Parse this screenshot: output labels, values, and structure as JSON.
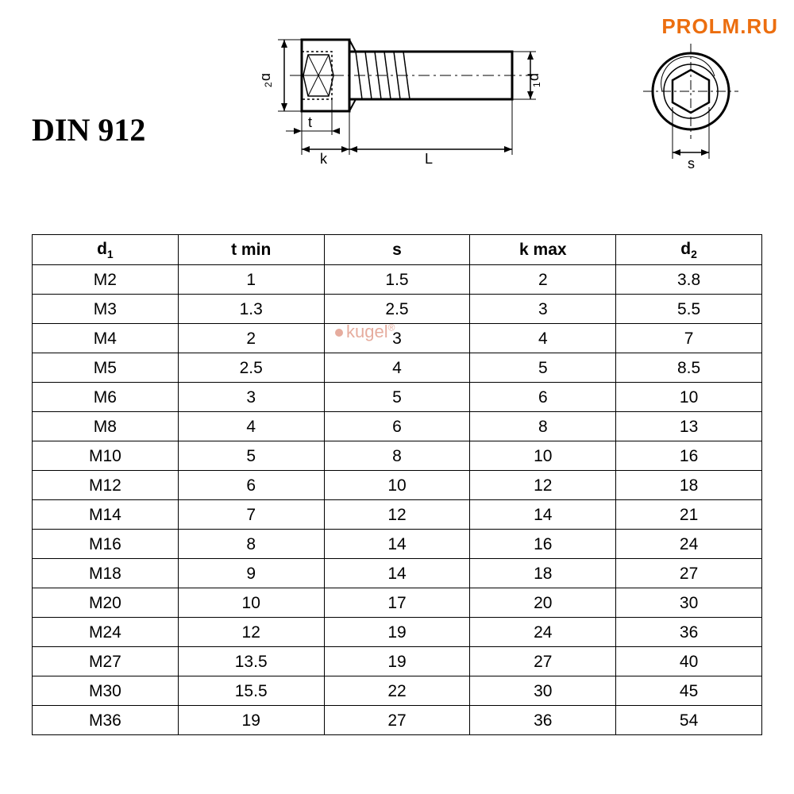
{
  "title": "DIN 912",
  "watermark_top": "PROLM.RU",
  "watermark_mid": "kugel",
  "watermark_top_color": "#ec6e0f",
  "watermark_mid_color": "rgba(200,70,40,0.45)",
  "diagram": {
    "labels": {
      "d1": "d",
      "d2": "d",
      "t": "t",
      "k": "k",
      "L": "L",
      "s": "s"
    },
    "stroke": "#000000",
    "stroke_width": 2
  },
  "table": {
    "columns": [
      {
        "label": "d",
        "sub": "1"
      },
      {
        "label": "t min",
        "sub": ""
      },
      {
        "label": "s",
        "sub": ""
      },
      {
        "label": "k max",
        "sub": ""
      },
      {
        "label": "d",
        "sub": "2"
      }
    ],
    "col_widths_pct": [
      20,
      20,
      20,
      20,
      20
    ],
    "border_color": "#000000",
    "font_family": "Arial",
    "font_size_pt": 16,
    "header_font_weight": "bold",
    "rows": [
      [
        "M2",
        "1",
        "1.5",
        "2",
        "3.8"
      ],
      [
        "M3",
        "1.3",
        "2.5",
        "3",
        "5.5"
      ],
      [
        "M4",
        "2",
        "3",
        "4",
        "7"
      ],
      [
        "M5",
        "2.5",
        "4",
        "5",
        "8.5"
      ],
      [
        "M6",
        "3",
        "5",
        "6",
        "10"
      ],
      [
        "M8",
        "4",
        "6",
        "8",
        "13"
      ],
      [
        "M10",
        "5",
        "8",
        "10",
        "16"
      ],
      [
        "M12",
        "6",
        "10",
        "12",
        "18"
      ],
      [
        "M14",
        "7",
        "12",
        "14",
        "21"
      ],
      [
        "M16",
        "8",
        "14",
        "16",
        "24"
      ],
      [
        "M18",
        "9",
        "14",
        "18",
        "27"
      ],
      [
        "M20",
        "10",
        "17",
        "20",
        "30"
      ],
      [
        "M24",
        "12",
        "19",
        "24",
        "36"
      ],
      [
        "M27",
        "13.5",
        "19",
        "27",
        "40"
      ],
      [
        "M30",
        "15.5",
        "22",
        "30",
        "45"
      ],
      [
        "M36",
        "19",
        "27",
        "36",
        "54"
      ]
    ]
  }
}
